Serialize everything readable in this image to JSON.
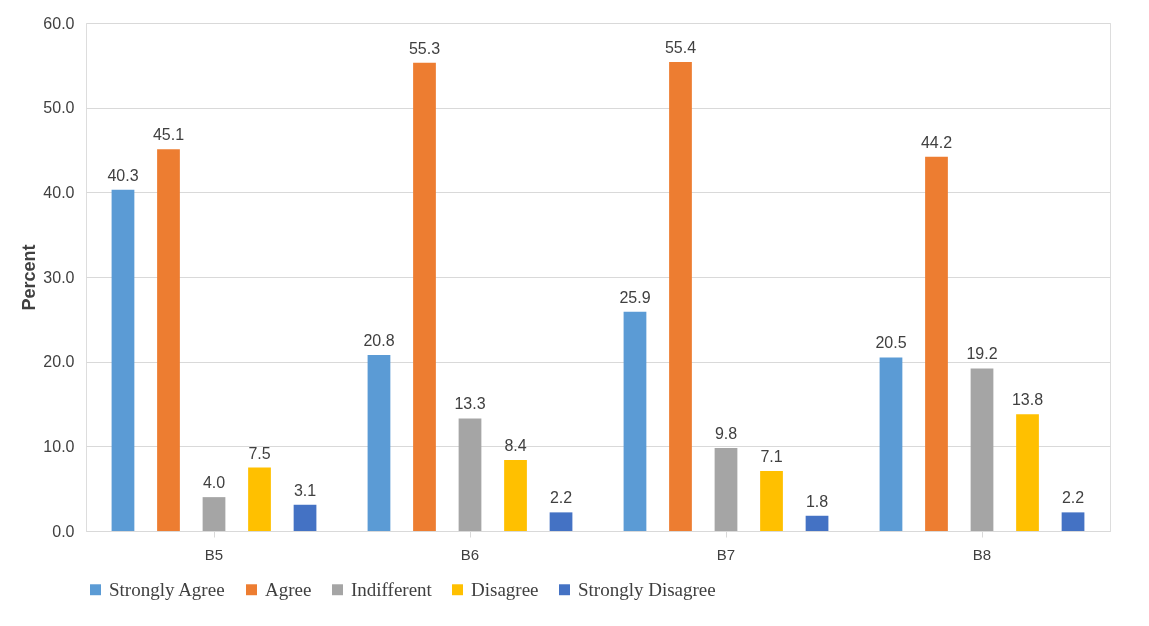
{
  "chart_data": {
    "type": "bar",
    "ylabel": "Percent",
    "categories": [
      "B5",
      "B6",
      "B7",
      "B8"
    ],
    "series": [
      {
        "name": "Strongly Agree",
        "color": "#5b9bd5",
        "values": [
          40.3,
          20.8,
          25.9,
          20.5
        ],
        "value_labels": [
          "40.3",
          "20.8",
          "25.9",
          "20.5"
        ]
      },
      {
        "name": "Agree",
        "color": "#ed7d31",
        "values": [
          45.1,
          55.3,
          55.4,
          44.2
        ],
        "value_labels": [
          "45.1",
          "55.3",
          "55.4",
          "44.2"
        ]
      },
      {
        "name": "Indifferent",
        "color": "#a5a5a5",
        "values": [
          4.0,
          13.3,
          9.8,
          19.2
        ],
        "value_labels": [
          "4.0",
          "13.3",
          "9.8",
          "19.2"
        ]
      },
      {
        "name": "Disagree",
        "color": "#ffc000",
        "values": [
          7.5,
          8.4,
          7.1,
          13.8
        ],
        "value_labels": [
          "7.5",
          "8.4",
          "7.1",
          "13.8"
        ]
      },
      {
        "name": "Strongly Disagree",
        "color": "#4472c4",
        "values": [
          3.1,
          2.2,
          1.8,
          2.2
        ],
        "value_labels": [
          "3.1",
          "2.2",
          "1.8",
          "2.2"
        ]
      }
    ],
    "ylim": [
      0,
      60
    ],
    "yticks": [
      {
        "value": 0,
        "label": "0.0"
      },
      {
        "value": 10,
        "label": "10.0"
      },
      {
        "value": 20,
        "label": "20.0"
      },
      {
        "value": 30,
        "label": "30.0"
      },
      {
        "value": 40,
        "label": "40.0"
      },
      {
        "value": 50,
        "label": "50.0"
      },
      {
        "value": 60,
        "label": "60.0"
      }
    ],
    "grid": "y",
    "legend": "bottom"
  }
}
